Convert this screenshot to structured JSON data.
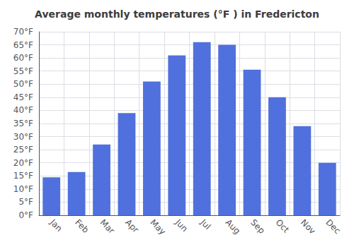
{
  "chart_data": {
    "type": "bar",
    "title": "Average monthly temperatures (°F ) in Fredericton",
    "categories": [
      "Jan",
      "Feb",
      "Mar",
      "Apr",
      "May",
      "Jun",
      "Jul",
      "Aug",
      "Sep",
      "Oct",
      "Nov",
      "Dec"
    ],
    "values": [
      14.5,
      16.5,
      27,
      39,
      51,
      61,
      66,
      65,
      55.5,
      45,
      34,
      20
    ],
    "ylim": [
      0,
      70
    ],
    "yticks": [
      {
        "value": 0,
        "label": "0°F"
      },
      {
        "value": 5,
        "label": "5°F"
      },
      {
        "value": 10,
        "label": "10°F"
      },
      {
        "value": 15,
        "label": "15°F"
      },
      {
        "value": 20,
        "label": "20°F"
      },
      {
        "value": 25,
        "label": "25°F"
      },
      {
        "value": 30,
        "label": "30°F"
      },
      {
        "value": 35,
        "label": "35°F"
      },
      {
        "value": 40,
        "label": "40°F"
      },
      {
        "value": 45,
        "label": "45°F"
      },
      {
        "value": 50,
        "label": "50°F"
      },
      {
        "value": 55,
        "label": "55°F"
      },
      {
        "value": 60,
        "label": "60°F"
      },
      {
        "value": 65,
        "label": "65°F"
      },
      {
        "value": 70,
        "label": "70°F"
      }
    ],
    "grid": true
  }
}
